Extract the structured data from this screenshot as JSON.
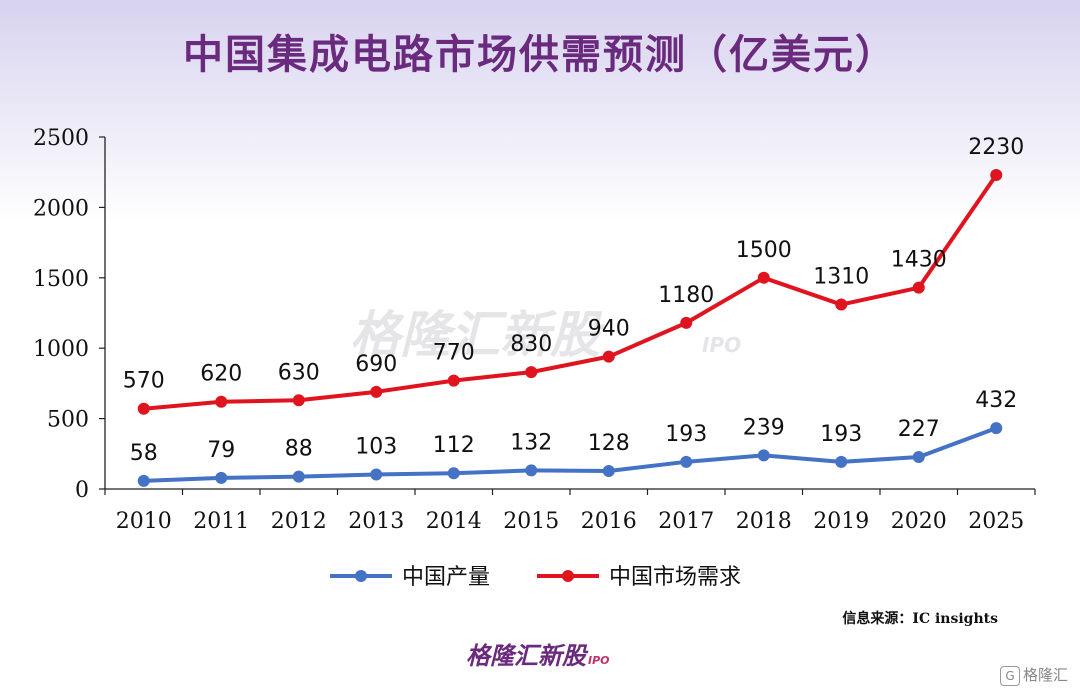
{
  "chart_data": {
    "type": "line",
    "title": "中国集成电路市场供需预测（亿美元）",
    "categories": [
      "2010",
      "2011",
      "2012",
      "2013",
      "2014",
      "2015",
      "2016",
      "2017",
      "2018",
      "2019",
      "2020",
      "2025"
    ],
    "ylim": [
      0,
      2500
    ],
    "yticks": [
      0,
      500,
      1000,
      1500,
      2000,
      2500
    ],
    "grid": false,
    "legend_position": "bottom",
    "series": [
      {
        "name": "中国产量",
        "color": "#4472c4",
        "values": [
          58,
          79,
          88,
          103,
          112,
          132,
          128,
          193,
          239,
          193,
          227,
          432
        ]
      },
      {
        "name": "中国市场需求",
        "color": "#e0141e",
        "values": [
          570,
          620,
          630,
          690,
          770,
          830,
          940,
          1180,
          1500,
          1310,
          1430,
          2230
        ]
      }
    ]
  },
  "source_note": "信息来源：IC insights",
  "watermark": {
    "brand": "格隆汇新股",
    "suffix": "IPO"
  },
  "footer_logo": {
    "brand": "格隆汇新股",
    "suffix": "IPO"
  },
  "corner_logo": {
    "icon": "G",
    "text": "格隆汇"
  }
}
